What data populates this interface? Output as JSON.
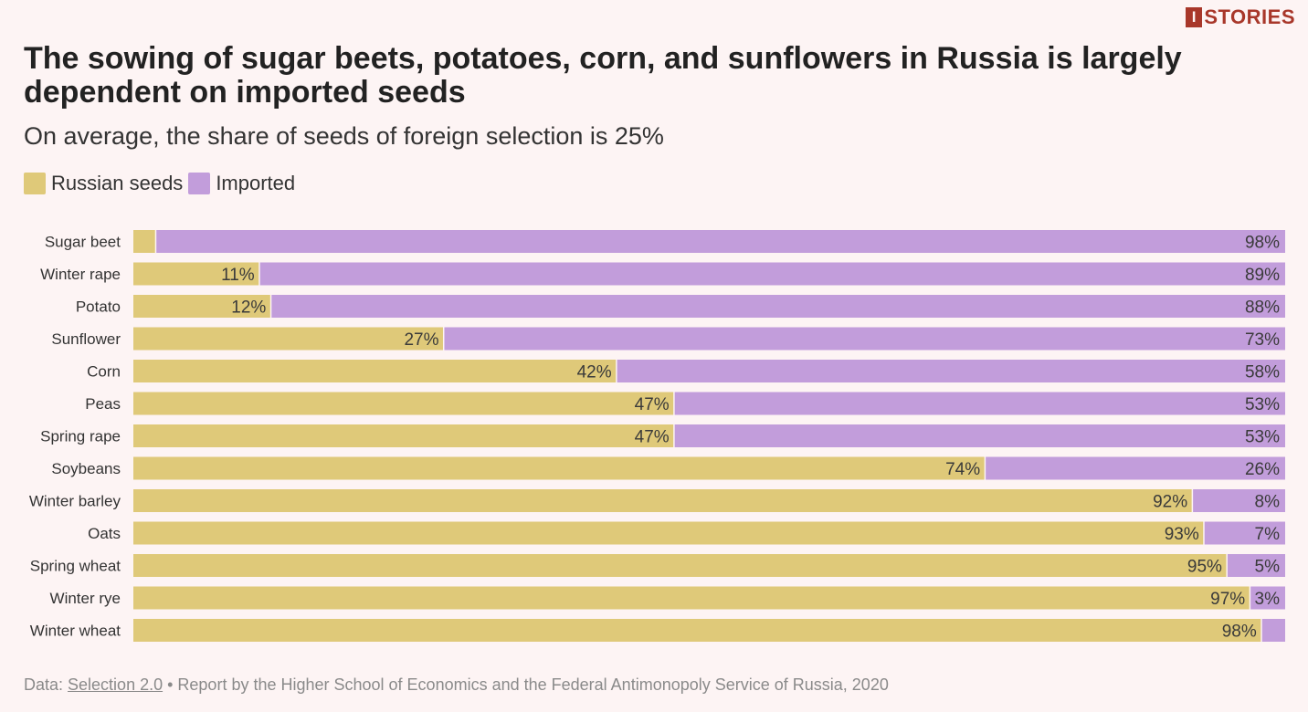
{
  "brand": {
    "mark": "I",
    "name": "STORIES"
  },
  "colors": {
    "russian": "#dfc979",
    "imported": "#c29ddb",
    "background": "#fdf4f4"
  },
  "footer": {
    "prefix": "Data: ",
    "link": "Selection 2.0",
    "rest": " • Report by the Higher School of Economics and the Federal Antimonopoly Service of Russia, 2020"
  },
  "chart_data": {
    "type": "bar",
    "orientation": "horizontal",
    "stacked": true,
    "title": "The sowing of sugar beets, potatoes, corn, and sunflowers in Russia is largely dependent on imported seeds",
    "subtitle": "On average, the share of seeds of foreign selection is 25%",
    "xlim": [
      0,
      100
    ],
    "legend": "top-left",
    "grid": false,
    "categories": [
      "Sugar beet",
      "Winter rape",
      "Potato",
      "Sunflower",
      "Corn",
      "Peas",
      "Spring rape",
      "Soybeans",
      "Winter barley",
      "Oats",
      "Spring wheat",
      "Winter rye",
      "Winter wheat"
    ],
    "series": [
      {
        "name": "Russian seeds",
        "values": [
          2,
          11,
          12,
          27,
          42,
          47,
          47,
          74,
          92,
          93,
          95,
          97,
          98
        ],
        "labels": [
          "",
          "11%",
          "12%",
          "27%",
          "42%",
          "47%",
          "47%",
          "74%",
          "92%",
          "93%",
          "95%",
          "97%",
          "98%"
        ]
      },
      {
        "name": "Imported",
        "values": [
          98,
          89,
          88,
          73,
          58,
          53,
          53,
          26,
          8,
          7,
          5,
          3,
          2
        ],
        "labels": [
          "98%",
          "89%",
          "88%",
          "73%",
          "58%",
          "53%",
          "53%",
          "26%",
          "8%",
          "7%",
          "5%",
          "3%",
          ""
        ]
      }
    ]
  }
}
